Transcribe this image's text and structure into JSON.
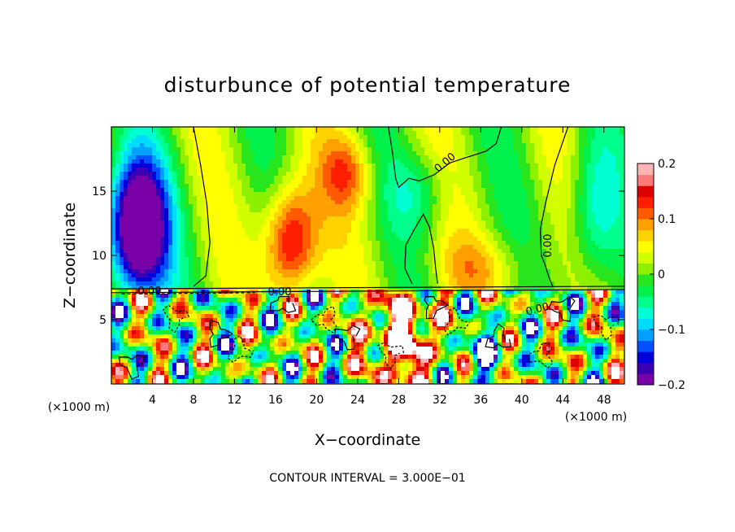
{
  "chart_data": {
    "type": "heatmap",
    "title": "disturbunce of potential temperature",
    "xlabel": "X−coordinate",
    "ylabel": "Z−coordinate",
    "x_unit_left": "(×1000 m)",
    "x_unit_right": "(×1000 m)",
    "xlim": [
      0,
      50
    ],
    "ylim": [
      0,
      20
    ],
    "x_ticks": [
      {
        "value": 4,
        "label": "4"
      },
      {
        "value": 8,
        "label": "8"
      },
      {
        "value": 12,
        "label": "12"
      },
      {
        "value": 16,
        "label": "16"
      },
      {
        "value": 20,
        "label": "20"
      },
      {
        "value": 24,
        "label": "24"
      },
      {
        "value": 28,
        "label": "28"
      },
      {
        "value": 32,
        "label": "32"
      },
      {
        "value": 36,
        "label": "36"
      },
      {
        "value": 40,
        "label": "40"
      },
      {
        "value": 44,
        "label": "44"
      },
      {
        "value": 48,
        "label": "48"
      }
    ],
    "y_ticks": [
      {
        "value": 5,
        "label": "5"
      },
      {
        "value": 10,
        "label": "10"
      },
      {
        "value": 15,
        "label": "15"
      }
    ],
    "colorbar": {
      "min": -0.2,
      "max": 0.2,
      "ticks": [
        {
          "value": 0.2,
          "label": "0.2"
        },
        {
          "value": 0.1,
          "label": "0.1"
        },
        {
          "value": 0,
          "label": "0"
        },
        {
          "value": -0.1,
          "label": "−0.1"
        },
        {
          "value": -0.2,
          "label": "−0.2"
        }
      ],
      "colors": [
        "#7a00a8",
        "#3c00b4",
        "#0000dc",
        "#0050ff",
        "#00a0ff",
        "#00dcff",
        "#00ffd2",
        "#00ff8c",
        "#00f04c",
        "#28e61e",
        "#8cf000",
        "#d2ff00",
        "#ffff00",
        "#ffd200",
        "#ffa000",
        "#ff5a00",
        "#ff1e00",
        "#dc0000",
        "#ff7878",
        "#ffb4b4"
      ]
    },
    "contour_labels": [
      "0.00",
      "0.00",
      "0.00",
      "0.00",
      "0.00"
    ],
    "contour_note": "CONTOUR INTERVAL = 3.000E−01"
  }
}
